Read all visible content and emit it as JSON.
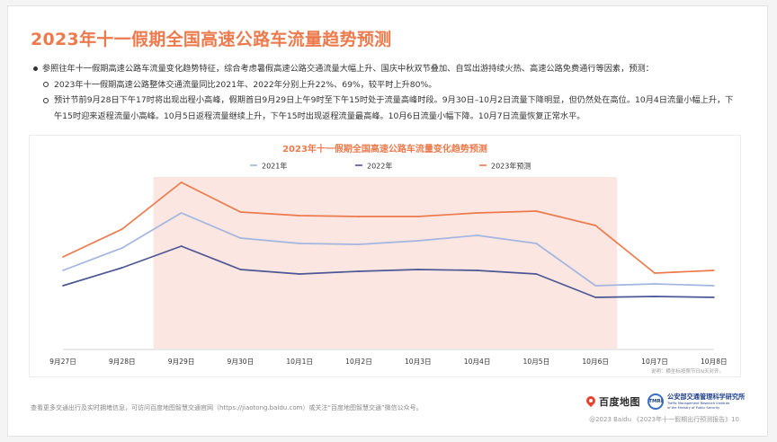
{
  "page": {
    "title": "2023年十一假期全国高速公路车流量趋势预测",
    "bullets": {
      "main": "参照往年十一假期高速公路车流量变化趋势特征，综合考虑暑假高速公路交通流量大幅上升、国庆中秋双节叠加、自驾出游持续火热、高速公路免费通行等因素，预测：",
      "sub": [
        "2023年十一假期高速公路整体交通流量同比2021年、2022年分别上升22%、69%，较平时上升80%。",
        "预计节前9月28日下午17时将出现出程小高峰，假期首日9月29日上午9时至下午15时处于流量高峰时段。9月30日–10月2日流量下降明显，但仍然处在高位。10月4日流量小幅上升，下午15时迎来返程流量小高峰。10月5日返程流量继续上升，下午15时出现返程流量最高峰。10月6日流量小幅下降。10月7日流量恢复正常水平。"
      ]
    },
    "footer": {
      "note": "查看更多交通出行及实时拥堵信息，可访问百度地图智慧交通官网（https://jiaotong.baidu.com）或关注“百度地图智慧交通”微信公众号。",
      "copyright": "@2023 Baidu 《2023年十一假期出行预测报告》10",
      "baidu_logo": "百度地图",
      "tmri_logo_badge": "TMRI",
      "tmri_logo_cn": "公安部交通管理科学研究所",
      "tmri_logo_en_1": "Traffic Management Research Institute",
      "tmri_logo_en_2": "of the Ministry of Public Security"
    }
  },
  "chart_data": {
    "type": "line",
    "title": "2023年十一假期全国高速公路车流量变化趋势预测",
    "xlabel": "",
    "ylabel": "",
    "categories": [
      "9月27日",
      "9月28日",
      "9月29日",
      "9月30日",
      "10月1日",
      "10月2日",
      "10月3日",
      "10月4日",
      "10月5日",
      "10月6日",
      "10月7日",
      "10月8日"
    ],
    "series": [
      {
        "name": "2021年",
        "color": "#a3b6e0",
        "values": [
          43.5,
          56,
          75.5,
          61.5,
          58.5,
          58,
          60,
          63,
          58.5,
          35,
          36,
          35
        ]
      },
      {
        "name": "2022年",
        "color": "#4c5796",
        "values": [
          35,
          45,
          57,
          44,
          41.5,
          43,
          44,
          43.5,
          41.5,
          28.5,
          29,
          28.5
        ]
      },
      {
        "name": "2023年预测",
        "color": "#ec7a4c",
        "values": [
          51,
          66.5,
          92.5,
          76,
          74,
          73.5,
          73.5,
          75.5,
          76.5,
          68.5,
          42,
          43.5
        ]
      }
    ],
    "ylim": [
      0,
      100
    ],
    "y_unit_note": "relative index (no y-axis shown)",
    "highlight_range": [
      "9月29日",
      "10月6日"
    ],
    "highlight_color": "#fbe6e1",
    "legend_position": "top",
    "grid": false,
    "note": "说明：横坐标按照节日N天对齐。"
  }
}
